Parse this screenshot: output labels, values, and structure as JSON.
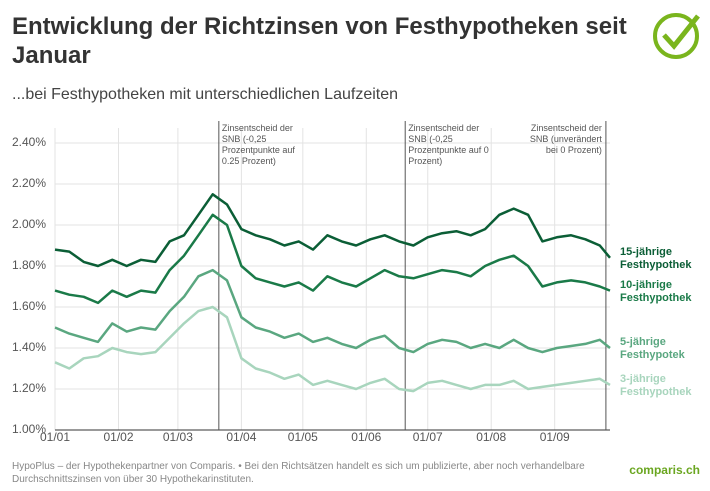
{
  "chart_data": {
    "type": "line",
    "title": "Entwicklung der Richtzinsen von Festhypotheken seit Januar",
    "subtitle": "...bei Festhypotheken mit unterschiedlichen Laufzeiten",
    "source": "HypoPlus – der Hypothekenpartner von Comparis. • Bei den Richtsätzen handelt es sich um publizierte, aber noch verhandelbare Durchschnittszinsen von über 30 Hypothekarinstituten.",
    "logo": "comparis.ch",
    "x": [
      "01/01",
      "08/01",
      "15/01",
      "22/01",
      "29/01",
      "05/02",
      "12/02",
      "19/02",
      "26/02",
      "04/03",
      "11/03",
      "18/03",
      "25/03",
      "01/04",
      "08/04",
      "15/04",
      "22/04",
      "29/04",
      "06/05",
      "13/05",
      "20/05",
      "27/05",
      "03/06",
      "10/06",
      "17/06",
      "24/06",
      "01/07",
      "08/07",
      "15/07",
      "22/07",
      "29/07",
      "05/08",
      "12/08",
      "19/08",
      "26/08",
      "02/09",
      "09/09",
      "16/09",
      "23/09",
      "28/09"
    ],
    "xlim": [
      "01/01",
      "28/09"
    ],
    "xticks": [
      "01/01",
      "01/02",
      "01/03",
      "01/04",
      "01/05",
      "01/06",
      "01/07",
      "01/08",
      "01/09"
    ],
    "ylim": [
      1.0,
      2.4
    ],
    "yticks": [
      {
        "value": 1.0,
        "label": "1.00%"
      },
      {
        "value": 1.2,
        "label": "1.20%"
      },
      {
        "value": 1.4,
        "label": "1.40%"
      },
      {
        "value": 1.6,
        "label": "1.60%"
      },
      {
        "value": 1.8,
        "label": "1.80%"
      },
      {
        "value": 2.0,
        "label": "2.00%"
      },
      {
        "value": 2.2,
        "label": "2.20%"
      },
      {
        "value": 2.4,
        "label": "2.40%"
      }
    ],
    "grid": true,
    "series": [
      {
        "name": "15-jährige Festhypothek",
        "color": "#0b5e36",
        "values": [
          1.88,
          1.87,
          1.82,
          1.8,
          1.83,
          1.8,
          1.83,
          1.82,
          1.92,
          1.95,
          2.05,
          2.15,
          2.1,
          1.98,
          1.95,
          1.93,
          1.9,
          1.92,
          1.88,
          1.95,
          1.92,
          1.9,
          1.93,
          1.95,
          1.92,
          1.9,
          1.94,
          1.96,
          1.97,
          1.95,
          1.98,
          2.05,
          2.08,
          2.05,
          1.92,
          1.94,
          1.95,
          1.93,
          1.9,
          1.84
        ]
      },
      {
        "name": "10-jährige Festhypothek",
        "color": "#1a7a48",
        "values": [
          1.68,
          1.66,
          1.65,
          1.62,
          1.68,
          1.65,
          1.68,
          1.67,
          1.78,
          1.85,
          1.95,
          2.05,
          2.0,
          1.8,
          1.74,
          1.72,
          1.7,
          1.72,
          1.68,
          1.75,
          1.72,
          1.7,
          1.74,
          1.78,
          1.75,
          1.74,
          1.76,
          1.78,
          1.77,
          1.75,
          1.8,
          1.83,
          1.85,
          1.8,
          1.7,
          1.72,
          1.73,
          1.72,
          1.7,
          1.68
        ]
      },
      {
        "name": "5-jährige Festhypotek",
        "color": "#5aa780",
        "values": [
          1.5,
          1.47,
          1.45,
          1.43,
          1.52,
          1.48,
          1.5,
          1.49,
          1.58,
          1.65,
          1.75,
          1.78,
          1.73,
          1.55,
          1.5,
          1.48,
          1.45,
          1.47,
          1.43,
          1.45,
          1.42,
          1.4,
          1.44,
          1.46,
          1.4,
          1.38,
          1.42,
          1.44,
          1.43,
          1.4,
          1.42,
          1.4,
          1.44,
          1.4,
          1.38,
          1.4,
          1.41,
          1.42,
          1.44,
          1.4
        ]
      },
      {
        "name": "3-jährige Festhypothek",
        "color": "#a8d5bd",
        "values": [
          1.33,
          1.3,
          1.35,
          1.36,
          1.4,
          1.38,
          1.37,
          1.38,
          1.45,
          1.52,
          1.58,
          1.6,
          1.55,
          1.35,
          1.3,
          1.28,
          1.25,
          1.27,
          1.22,
          1.24,
          1.22,
          1.2,
          1.23,
          1.25,
          1.2,
          1.19,
          1.23,
          1.24,
          1.22,
          1.2,
          1.22,
          1.22,
          1.24,
          1.2,
          1.21,
          1.22,
          1.23,
          1.24,
          1.25,
          1.22
        ]
      }
    ],
    "annotations": [
      {
        "x": "21/03",
        "text": "Zinsentscheid der SNB (-0,25 Prozentpunkte auf 0.25 Prozent)"
      },
      {
        "x": "20/06",
        "text": "Zinsentscheid der SNB (-0,25 Prozentpunkte auf 0 Prozent)"
      },
      {
        "x": "26/09",
        "text": "Zinsentscheid der SNB (unverändert bei 0 Prozent)"
      }
    ]
  }
}
